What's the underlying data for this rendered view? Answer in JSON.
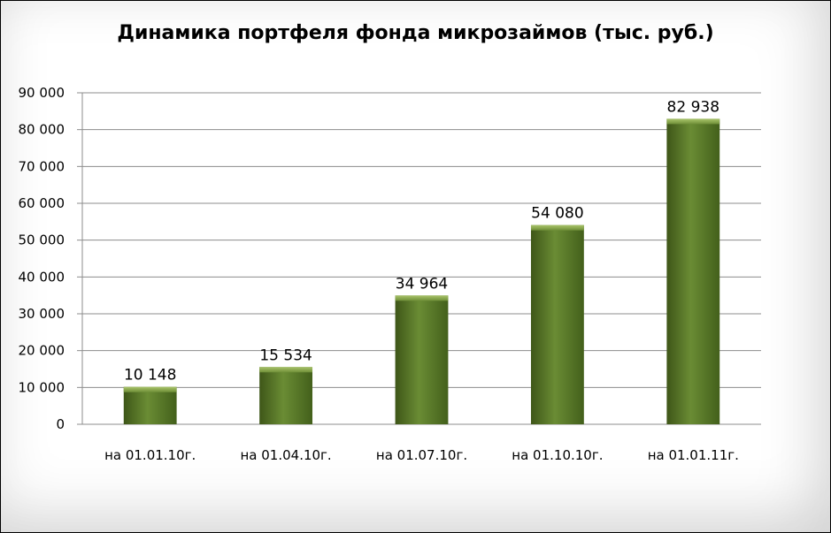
{
  "chart_data": {
    "type": "bar",
    "title": "Динамика портфеля фонда микрозаймов (тыс. руб.)",
    "categories": [
      "на 01.01.10г.",
      "на 01.04.10г.",
      "на 01.07.10г.",
      "на 01.10.10г.",
      "на 01.01.11г."
    ],
    "values": [
      10148,
      15534,
      34964,
      54080,
      82938
    ],
    "value_labels": [
      "10 148",
      "15 534",
      "34 964",
      "54 080",
      "82 938"
    ],
    "yticks": [
      "0",
      "10 000",
      "20 000",
      "30 000",
      "40 000",
      "50 000",
      "60 000",
      "70 000",
      "80 000",
      "90 000"
    ],
    "ylim": [
      0,
      90000
    ],
    "grid": true,
    "bar_color": "#5b7a2c",
    "xlabel": "",
    "ylabel": ""
  }
}
